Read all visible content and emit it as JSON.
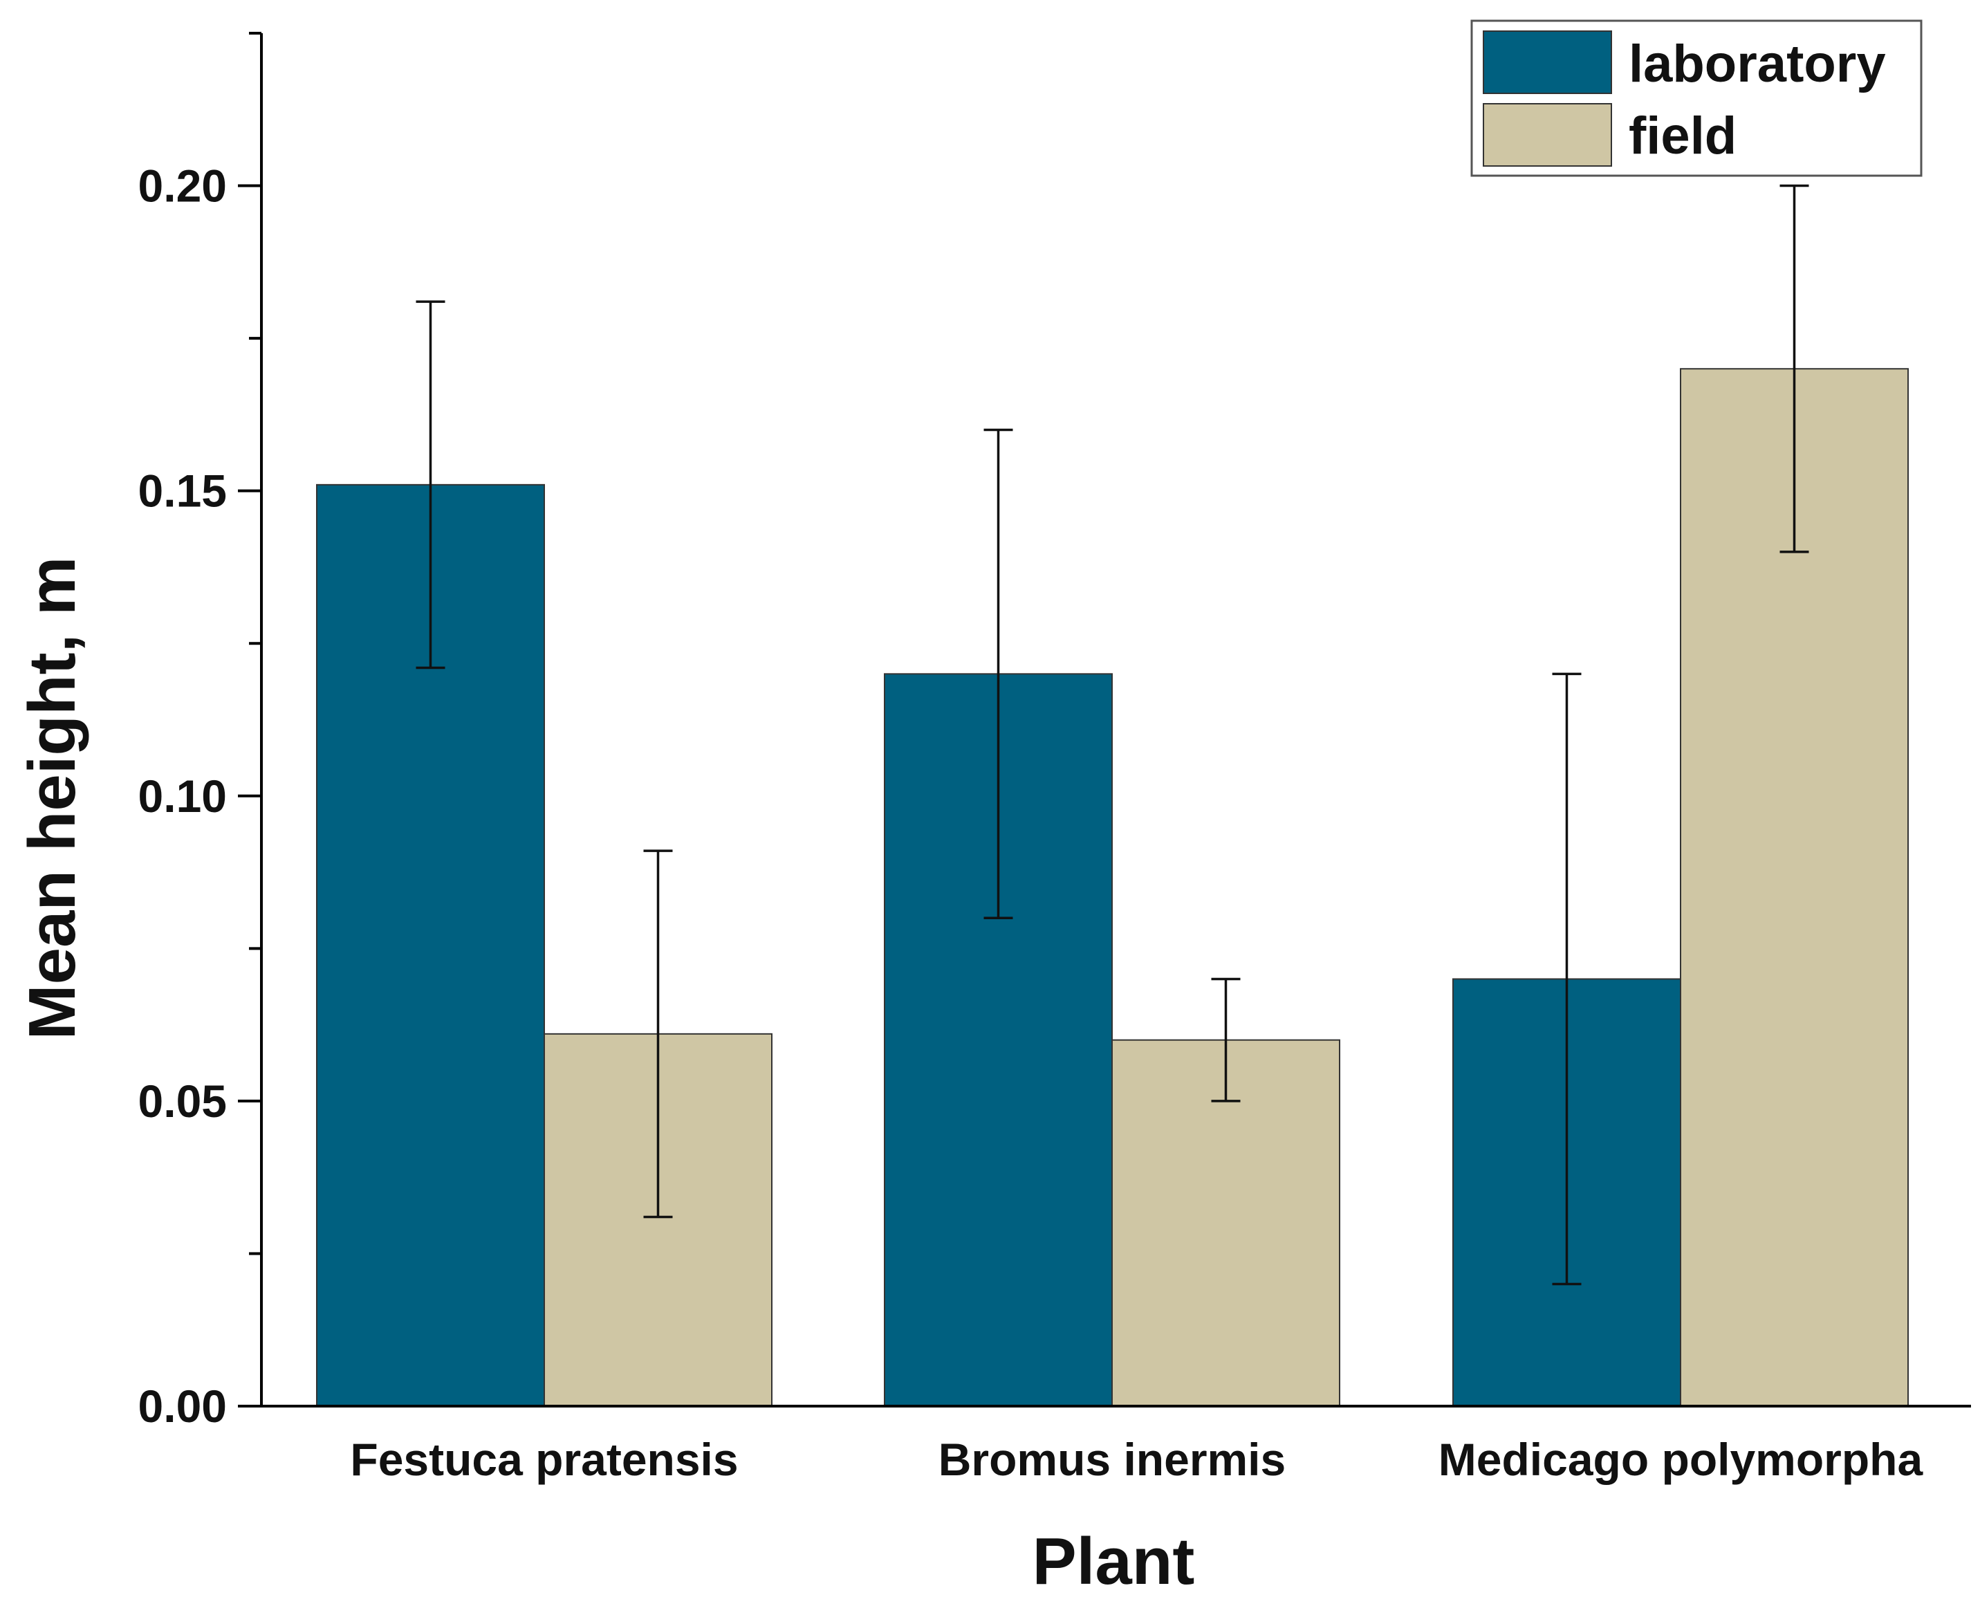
{
  "chart_data": {
    "type": "bar",
    "title": "",
    "xlabel": "Plant",
    "ylabel": "Mean height, m",
    "categories": [
      "Festuca pratensis",
      "Bromus inermis",
      "Medicago polymorpha"
    ],
    "series": [
      {
        "name": "laboratory",
        "color": "#006080",
        "values": [
          0.151,
          0.12,
          0.07
        ],
        "err_low": [
          0.121,
          0.08,
          0.02
        ],
        "err_high": [
          0.181,
          0.16,
          0.12
        ]
      },
      {
        "name": "field",
        "color": "#cfc6a4",
        "values": [
          0.061,
          0.06,
          0.17
        ],
        "err_low": [
          0.031,
          0.05,
          0.14
        ],
        "err_high": [
          0.091,
          0.07,
          0.2
        ]
      }
    ],
    "ylim": [
      0,
      0.225
    ],
    "yticks": [
      "0.00",
      "0.05",
      "0.10",
      "0.15",
      "0.20"
    ],
    "ytick_values": [
      0,
      0.05,
      0.1,
      0.15,
      0.2
    ],
    "minor_ytick_values": [
      0.025,
      0.075,
      0.125,
      0.175,
      0.225
    ],
    "grid": false,
    "legend_position": "top-right"
  }
}
